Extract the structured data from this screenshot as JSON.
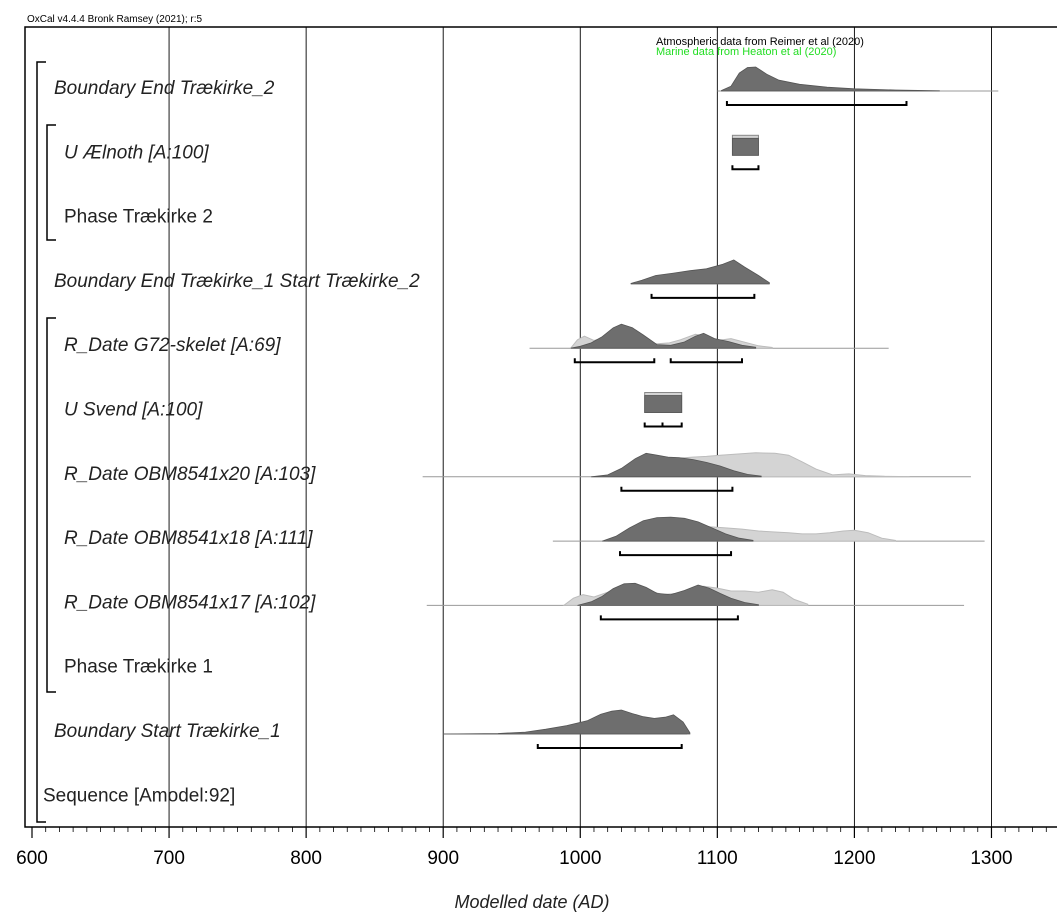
{
  "header": {
    "version": "OxCal v4.4.4 Bronk Ramsey (2021); r:5",
    "atmospheric_note": "Atmospheric data from Reimer et al (2020)",
    "marine_note": "Marine data from Heaton et al (2020)"
  },
  "colors": {
    "posterior": "#6e6e6e",
    "prior": "#d4d4d4",
    "marine_note": "#22dd22",
    "grid": "#000000"
  },
  "chart_data": {
    "type": "ridge-density",
    "xlabel": "Modelled date (AD)",
    "xlim": [
      600,
      1350
    ],
    "xticks": [
      600,
      700,
      800,
      900,
      1000,
      1100,
      1200,
      1300
    ],
    "rows": [
      {
        "label": "Boundary End Trækirke_2",
        "italic": true,
        "indent": 0,
        "tail": [
          1100,
          1305
        ],
        "posterior": [
          [
            1103,
            0.02
          ],
          [
            1110,
            0.2
          ],
          [
            1116,
            0.75
          ],
          [
            1122,
            0.98
          ],
          [
            1128,
            1
          ],
          [
            1136,
            0.7
          ],
          [
            1145,
            0.45
          ],
          [
            1160,
            0.28
          ],
          [
            1180,
            0.16
          ],
          [
            1200,
            0.09
          ],
          [
            1230,
            0.04
          ],
          [
            1262,
            0.01
          ]
        ],
        "range": [
          [
            1107,
            1238
          ]
        ]
      },
      {
        "label": "U Ælnoth [A:100]",
        "italic": true,
        "indent": 1,
        "box": [
          1111,
          1130
        ],
        "range": [
          [
            1111,
            1130
          ]
        ]
      },
      {
        "label": "Phase Trækirke 2",
        "italic": false,
        "indent": 1
      },
      {
        "label": "Boundary End Trækirke_1 Start Trækirke_2",
        "italic": true,
        "indent": 0,
        "tail": [
          1037,
          1138
        ],
        "posterior": [
          [
            1037,
            0.02
          ],
          [
            1045,
            0.15
          ],
          [
            1055,
            0.35
          ],
          [
            1068,
            0.45
          ],
          [
            1080,
            0.55
          ],
          [
            1092,
            0.63
          ],
          [
            1104,
            0.82
          ],
          [
            1112,
            1
          ],
          [
            1120,
            0.7
          ],
          [
            1130,
            0.35
          ],
          [
            1138,
            0.05
          ]
        ],
        "range": [
          [
            1052,
            1127
          ]
        ]
      },
      {
        "label": "R_Date G72-skelet [A:69]",
        "italic": true,
        "indent": 1,
        "tail": [
          963,
          1225
        ],
        "prior": [
          [
            993,
            0
          ],
          [
            998,
            0.35
          ],
          [
            1003,
            0.5
          ],
          [
            1010,
            0.32
          ],
          [
            1018,
            0.45
          ],
          [
            1028,
            0.78
          ],
          [
            1036,
            0.68
          ],
          [
            1045,
            0.5
          ],
          [
            1055,
            0.18
          ],
          [
            1065,
            0.22
          ],
          [
            1073,
            0.35
          ],
          [
            1084,
            0.58
          ],
          [
            1092,
            0.5
          ],
          [
            1100,
            0.32
          ],
          [
            1110,
            0.4
          ],
          [
            1120,
            0.25
          ],
          [
            1130,
            0.1
          ],
          [
            1140,
            0.03
          ]
        ],
        "posterior": [
          [
            993,
            0
          ],
          [
            1000,
            0.08
          ],
          [
            1008,
            0.22
          ],
          [
            1016,
            0.48
          ],
          [
            1024,
            0.85
          ],
          [
            1030,
            1
          ],
          [
            1038,
            0.85
          ],
          [
            1046,
            0.55
          ],
          [
            1056,
            0.15
          ],
          [
            1066,
            0.12
          ],
          [
            1076,
            0.26
          ],
          [
            1084,
            0.5
          ],
          [
            1090,
            0.62
          ],
          [
            1098,
            0.4
          ],
          [
            1108,
            0.28
          ],
          [
            1118,
            0.12
          ],
          [
            1128,
            0.04
          ]
        ],
        "range": [
          [
            996,
            1054
          ],
          [
            1066,
            1118
          ]
        ]
      },
      {
        "label": "U Svend [A:100]",
        "italic": true,
        "indent": 1,
        "box": [
          1047,
          1074
        ],
        "range": [
          [
            1047,
            1074
          ]
        ],
        "mark": 1060
      },
      {
        "label": "R_Date OBM8541x20 [A:103]",
        "italic": true,
        "indent": 1,
        "tail": [
          885,
          1285
        ],
        "prior": [
          [
            1020,
            0
          ],
          [
            1030,
            0.25
          ],
          [
            1042,
            0.55
          ],
          [
            1052,
            0.78
          ],
          [
            1062,
            0.82
          ],
          [
            1072,
            0.78
          ],
          [
            1082,
            0.82
          ],
          [
            1092,
            0.85
          ],
          [
            1102,
            0.9
          ],
          [
            1115,
            0.95
          ],
          [
            1128,
            1
          ],
          [
            1142,
            0.98
          ],
          [
            1152,
            0.9
          ],
          [
            1162,
            0.62
          ],
          [
            1172,
            0.32
          ],
          [
            1184,
            0.08
          ],
          [
            1196,
            0.12
          ],
          [
            1208,
            0.05
          ],
          [
            1222,
            0.02
          ],
          [
            1240,
            0.01
          ]
        ],
        "posterior": [
          [
            1008,
            0
          ],
          [
            1020,
            0.08
          ],
          [
            1030,
            0.35
          ],
          [
            1040,
            0.75
          ],
          [
            1048,
            0.98
          ],
          [
            1056,
            0.9
          ],
          [
            1064,
            0.82
          ],
          [
            1072,
            0.8
          ],
          [
            1082,
            0.72
          ],
          [
            1092,
            0.6
          ],
          [
            1102,
            0.45
          ],
          [
            1112,
            0.25
          ],
          [
            1122,
            0.1
          ],
          [
            1132,
            0.03
          ]
        ],
        "range": [
          [
            1030,
            1111
          ]
        ]
      },
      {
        "label": "R_Date OBM8541x18 [A:111]",
        "italic": true,
        "indent": 1,
        "tail": [
          980,
          1295
        ],
        "prior": [
          [
            1020,
            0
          ],
          [
            1032,
            0.3
          ],
          [
            1045,
            0.6
          ],
          [
            1058,
            0.8
          ],
          [
            1070,
            0.75
          ],
          [
            1082,
            0.65
          ],
          [
            1094,
            0.6
          ],
          [
            1106,
            0.55
          ],
          [
            1118,
            0.5
          ],
          [
            1130,
            0.42
          ],
          [
            1142,
            0.38
          ],
          [
            1152,
            0.35
          ],
          [
            1162,
            0.3
          ],
          [
            1172,
            0.3
          ],
          [
            1182,
            0.35
          ],
          [
            1192,
            0.42
          ],
          [
            1200,
            0.45
          ],
          [
            1210,
            0.35
          ],
          [
            1220,
            0.12
          ],
          [
            1230,
            0.03
          ]
        ],
        "posterior": [
          [
            1016,
            0
          ],
          [
            1026,
            0.2
          ],
          [
            1036,
            0.55
          ],
          [
            1046,
            0.85
          ],
          [
            1056,
            0.98
          ],
          [
            1066,
            1
          ],
          [
            1076,
            0.95
          ],
          [
            1086,
            0.8
          ],
          [
            1096,
            0.55
          ],
          [
            1106,
            0.3
          ],
          [
            1116,
            0.12
          ],
          [
            1126,
            0.03
          ]
        ],
        "range": [
          [
            1029,
            1110
          ]
        ]
      },
      {
        "label": "R_Date OBM8541x17 [A:102]",
        "italic": true,
        "indent": 1,
        "tail": [
          888,
          1280
        ],
        "prior": [
          [
            988,
            0
          ],
          [
            995,
            0.3
          ],
          [
            1002,
            0.45
          ],
          [
            1010,
            0.35
          ],
          [
            1020,
            0.55
          ],
          [
            1030,
            0.82
          ],
          [
            1040,
            0.9
          ],
          [
            1050,
            0.62
          ],
          [
            1060,
            0.45
          ],
          [
            1070,
            0.5
          ],
          [
            1080,
            0.68
          ],
          [
            1090,
            0.8
          ],
          [
            1100,
            0.72
          ],
          [
            1110,
            0.6
          ],
          [
            1120,
            0.6
          ],
          [
            1130,
            0.55
          ],
          [
            1140,
            0.65
          ],
          [
            1148,
            0.55
          ],
          [
            1156,
            0.25
          ],
          [
            1166,
            0.05
          ]
        ],
        "posterior": [
          [
            998,
            0
          ],
          [
            1008,
            0.15
          ],
          [
            1016,
            0.38
          ],
          [
            1024,
            0.7
          ],
          [
            1032,
            0.9
          ],
          [
            1040,
            0.92
          ],
          [
            1048,
            0.75
          ],
          [
            1056,
            0.5
          ],
          [
            1066,
            0.45
          ],
          [
            1076,
            0.62
          ],
          [
            1086,
            0.85
          ],
          [
            1094,
            0.72
          ],
          [
            1102,
            0.5
          ],
          [
            1110,
            0.3
          ],
          [
            1120,
            0.12
          ],
          [
            1130,
            0.03
          ]
        ],
        "range": [
          [
            1015,
            1115
          ]
        ]
      },
      {
        "label": "Phase Trækirke 1",
        "italic": false,
        "indent": 1
      },
      {
        "label": "Boundary Start Trækirke_1",
        "italic": true,
        "indent": 0,
        "tail": [
          900,
          1078
        ],
        "posterior": [
          [
            900,
            0
          ],
          [
            940,
            0.02
          ],
          [
            960,
            0.08
          ],
          [
            975,
            0.2
          ],
          [
            990,
            0.35
          ],
          [
            1005,
            0.55
          ],
          [
            1015,
            0.82
          ],
          [
            1023,
            0.95
          ],
          [
            1030,
            1
          ],
          [
            1038,
            0.85
          ],
          [
            1046,
            0.72
          ],
          [
            1054,
            0.65
          ],
          [
            1062,
            0.7
          ],
          [
            1068,
            0.8
          ],
          [
            1075,
            0.5
          ],
          [
            1080,
            0.05
          ]
        ],
        "range": [
          [
            969,
            1074
          ]
        ]
      },
      {
        "label": "Sequence [Amodel:92]",
        "italic": false,
        "indent": -1
      }
    ]
  }
}
